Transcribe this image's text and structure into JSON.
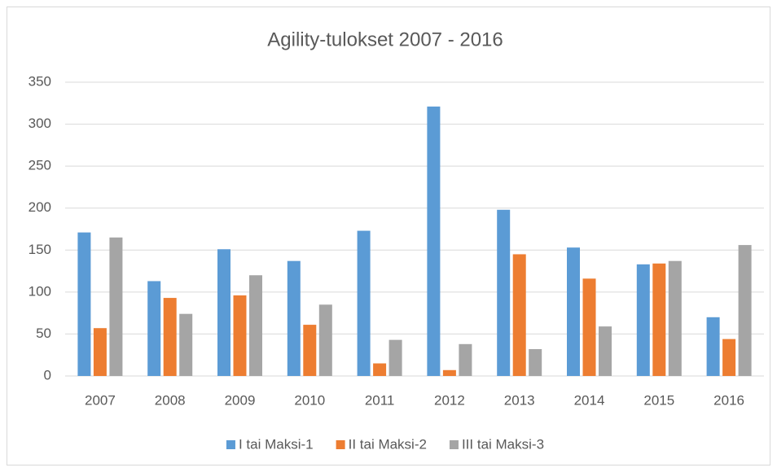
{
  "chart_data": {
    "type": "bar",
    "title": "Agility-tulokset 2007 - 2016",
    "categories": [
      "2007",
      "2008",
      "2009",
      "2010",
      "2011",
      "2012",
      "2013",
      "2014",
      "2015",
      "2016"
    ],
    "series": [
      {
        "name": "I tai Maksi-1",
        "color": "#5b9bd5",
        "values": [
          171,
          113,
          151,
          137,
          173,
          321,
          198,
          153,
          133,
          70
        ]
      },
      {
        "name": "II tai Maksi-2",
        "color": "#ed7d31",
        "values": [
          57,
          93,
          96,
          61,
          15,
          7,
          145,
          116,
          134,
          44
        ]
      },
      {
        "name": "III tai Maksi-3",
        "color": "#a5a5a5",
        "values": [
          165,
          74,
          120,
          85,
          43,
          38,
          32,
          59,
          137,
          156
        ]
      }
    ],
    "ylim": [
      0,
      350
    ],
    "yticks": [
      0,
      50,
      100,
      150,
      200,
      250,
      300,
      350
    ],
    "grid": true,
    "legend": "bottom"
  }
}
